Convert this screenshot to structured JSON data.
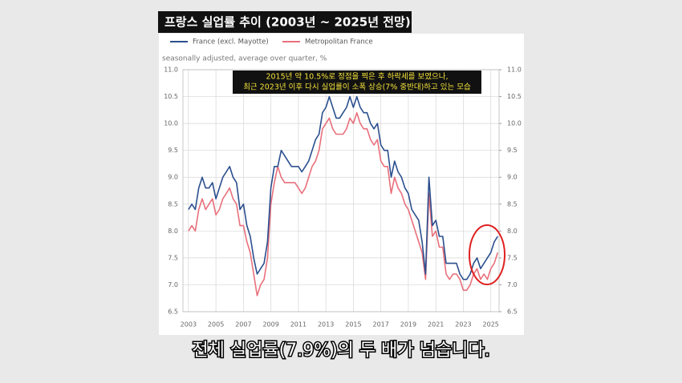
{
  "banner": "프랑스 실업률 추이 (2003년 ~ 2025년 전망)",
  "caption": "전체 실업률(7.9%)의 두 배가 넘습니다.",
  "chart_data": {
    "type": "line",
    "subtitle": "seasonally adjusted, average over quarter, %",
    "annotation": [
      "2015년 약 10.5%로 정점을 찍은 후 하락세를 보였으나,",
      "최근 2023년 이후 다시 실업률이 소폭 상승(7% 중반대)하고 있는 모습"
    ],
    "x": [
      2003,
      2003.25,
      2003.5,
      2003.75,
      2004,
      2004.25,
      2004.5,
      2004.75,
      2005,
      2005.25,
      2005.5,
      2005.75,
      2006,
      2006.25,
      2006.5,
      2006.75,
      2007,
      2007.25,
      2007.5,
      2007.75,
      2008,
      2008.25,
      2008.5,
      2008.75,
      2009,
      2009.25,
      2009.5,
      2009.75,
      2010,
      2010.25,
      2010.5,
      2010.75,
      2011,
      2011.25,
      2011.5,
      2011.75,
      2012,
      2012.25,
      2012.5,
      2012.75,
      2013,
      2013.25,
      2013.5,
      2013.75,
      2014,
      2014.25,
      2014.5,
      2014.75,
      2015,
      2015.25,
      2015.5,
      2015.75,
      2016,
      2016.25,
      2016.5,
      2016.75,
      2017,
      2017.25,
      2017.5,
      2017.75,
      2018,
      2018.25,
      2018.5,
      2018.75,
      2019,
      2019.25,
      2019.5,
      2019.75,
      2020,
      2020.25,
      2020.5,
      2020.75,
      2021,
      2021.25,
      2021.5,
      2021.75,
      2022,
      2022.25,
      2022.5,
      2022.75,
      2023,
      2023.25,
      2023.5,
      2023.75,
      2024,
      2024.25,
      2024.5,
      2024.75,
      2025,
      2025.25,
      2025.5
    ],
    "series": [
      {
        "name": "France (excl. Mayotte)",
        "color": "#2b4f8e",
        "values": [
          8.4,
          8.5,
          8.4,
          8.8,
          9.0,
          8.8,
          8.8,
          8.9,
          8.6,
          8.8,
          9.0,
          9.1,
          9.2,
          9.0,
          8.9,
          8.4,
          8.5,
          8.1,
          7.9,
          7.5,
          7.2,
          7.3,
          7.4,
          7.8,
          8.8,
          9.2,
          9.2,
          9.5,
          9.4,
          9.3,
          9.2,
          9.2,
          9.2,
          9.1,
          9.2,
          9.3,
          9.5,
          9.7,
          9.8,
          10.2,
          10.3,
          10.5,
          10.3,
          10.1,
          10.1,
          10.2,
          10.3,
          10.5,
          10.3,
          10.5,
          10.3,
          10.2,
          10.2,
          10.0,
          9.9,
          10.0,
          9.6,
          9.5,
          9.5,
          9.0,
          9.3,
          9.1,
          9.0,
          8.8,
          8.7,
          8.4,
          8.3,
          8.2,
          7.8,
          7.2,
          9.0,
          8.1,
          8.2,
          7.9,
          7.9,
          7.4,
          7.4,
          7.4,
          7.4,
          7.2,
          7.1,
          7.1,
          7.2,
          7.4,
          7.5,
          7.3,
          7.4,
          7.5,
          7.6,
          7.8,
          7.9
        ]
      },
      {
        "name": "Metropolitan France",
        "color": "#e8707c",
        "values": [
          8.0,
          8.1,
          8.0,
          8.4,
          8.6,
          8.4,
          8.5,
          8.6,
          8.3,
          8.4,
          8.6,
          8.7,
          8.8,
          8.6,
          8.5,
          8.1,
          8.1,
          7.8,
          7.6,
          7.2,
          6.8,
          7.0,
          7.1,
          7.5,
          8.5,
          8.9,
          9.2,
          9.0,
          8.9,
          8.9,
          8.9,
          8.9,
          8.8,
          8.7,
          8.8,
          9.0,
          9.2,
          9.3,
          9.5,
          9.9,
          10.0,
          10.1,
          9.9,
          9.8,
          9.8,
          9.8,
          9.9,
          10.1,
          10.0,
          10.2,
          10.0,
          9.9,
          9.9,
          9.7,
          9.6,
          9.7,
          9.3,
          9.2,
          9.2,
          8.7,
          9.0,
          8.8,
          8.7,
          8.5,
          8.4,
          8.2,
          8.0,
          7.8,
          7.6,
          7.1,
          8.7,
          7.9,
          8.0,
          7.7,
          7.7,
          7.2,
          7.1,
          7.2,
          7.2,
          7.1,
          6.9,
          6.9,
          7.0,
          7.2,
          7.3,
          7.1,
          7.2,
          7.1,
          7.3,
          7.4,
          7.6
        ]
      }
    ],
    "xlim": [
      2002.6,
      2025.6
    ],
    "xticks": [
      2003,
      2005,
      2007,
      2009,
      2011,
      2013,
      2015,
      2017,
      2019,
      2021,
      2023,
      2025
    ],
    "ylim": [
      6.5,
      11
    ],
    "yticks": [
      6.5,
      {
        "value": 7,
        "label": "7.0"
      },
      7.5,
      {
        "value": 8,
        "label": "8.0"
      },
      8.5,
      {
        "value": 9,
        "label": "9.0"
      },
      9.5,
      {
        "value": 10,
        "label": "10.0"
      },
      10.5,
      {
        "value": 11,
        "label": "11.0"
      }
    ],
    "y2lim": [
      6.5,
      11
    ],
    "y2ticks": [
      6.5,
      {
        "value": 7,
        "label": "7.0"
      },
      7.5,
      {
        "value": 8,
        "label": "8.0"
      },
      8.5,
      {
        "value": 9,
        "label": "9.0"
      },
      9.5,
      {
        "value": 10,
        "label": "10.0"
      },
      10.5,
      {
        "value": 11,
        "label": "11.0"
      }
    ],
    "grid": true
  }
}
